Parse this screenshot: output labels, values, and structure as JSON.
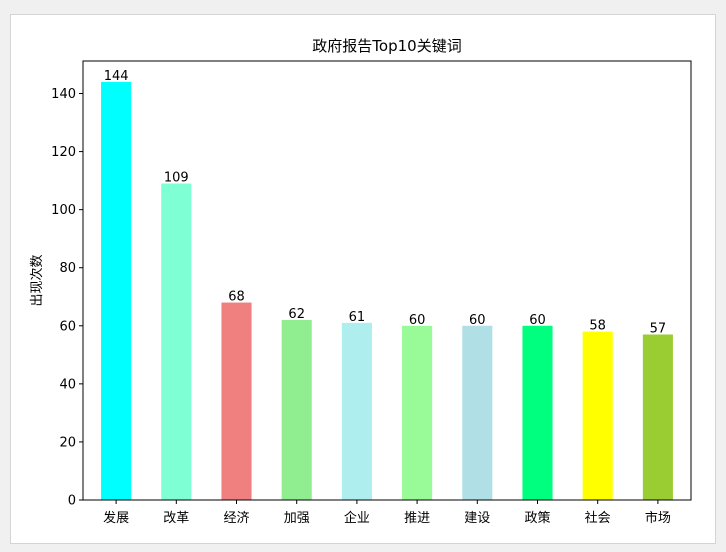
{
  "chart_data": {
    "type": "bar",
    "title": "政府报告Top10关键词",
    "xlabel": "",
    "ylabel": "出现次数",
    "categories": [
      "发展",
      "改革",
      "经济",
      "加强",
      "企业",
      "推进",
      "建设",
      "政策",
      "社会",
      "市场"
    ],
    "values": [
      144,
      109,
      68,
      62,
      61,
      60,
      60,
      60,
      58,
      57
    ],
    "colors": [
      "#00ffff",
      "#7fffd4",
      "#f08080",
      "#90ee90",
      "#afeeee",
      "#98fb98",
      "#b0e0e6",
      "#00ff7f",
      "#ffff00",
      "#9acd32"
    ],
    "ylim": [
      0,
      151.2
    ],
    "yticks": [
      0,
      20,
      40,
      60,
      80,
      100,
      120,
      140
    ],
    "grid": false,
    "legend": "none"
  }
}
